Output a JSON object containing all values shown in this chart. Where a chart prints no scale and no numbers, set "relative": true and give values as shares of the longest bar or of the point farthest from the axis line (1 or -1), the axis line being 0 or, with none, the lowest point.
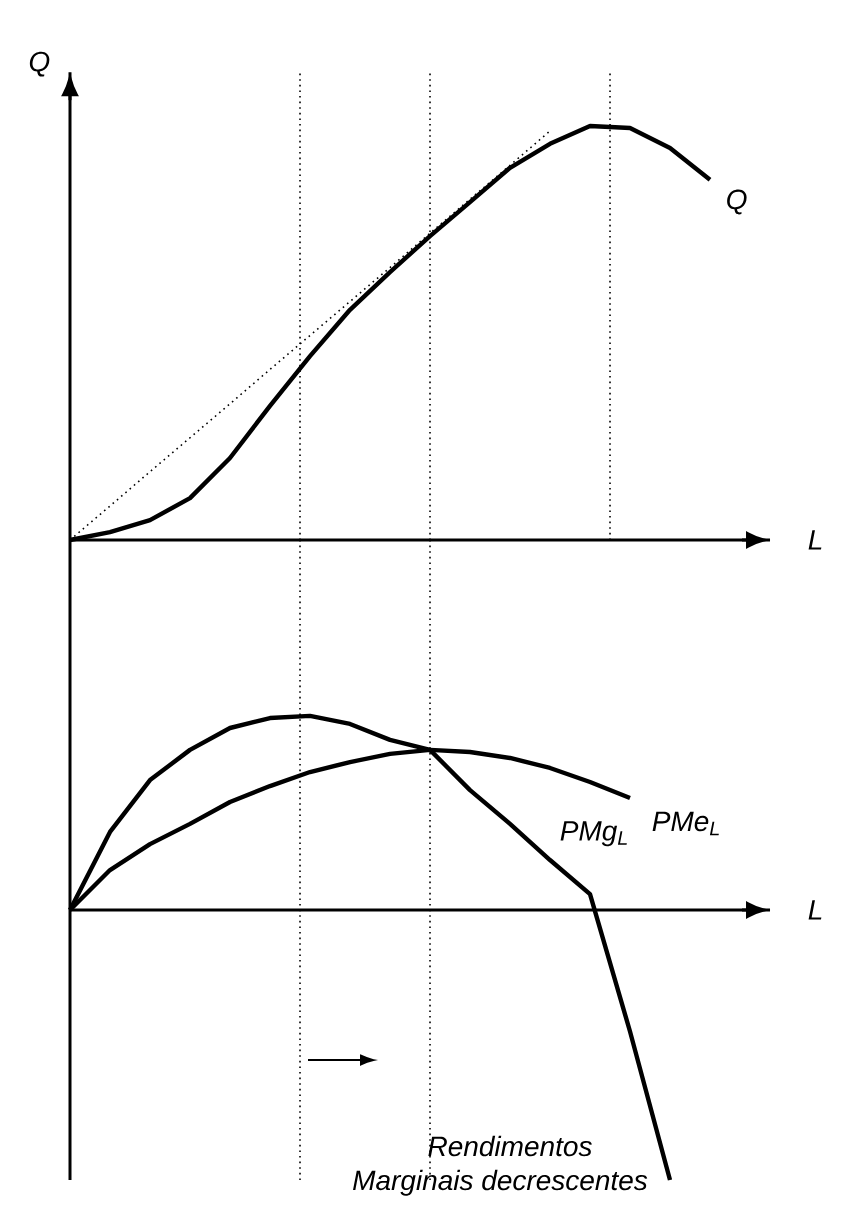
{
  "chart_data": [
    {
      "type": "line",
      "relative": true,
      "ylabel": "Q",
      "xlabel": "L",
      "marker": "none",
      "categories": [
        null,
        null,
        null,
        null,
        null,
        null,
        null,
        null,
        null,
        null,
        null,
        null,
        null,
        null,
        null,
        null,
        null,
        null
      ],
      "series": [
        {
          "name": "Q",
          "color": "#000000",
          "values": [
            0,
            0.019,
            0.048,
            0.101,
            0.198,
            0.324,
            0.444,
            0.556,
            0.647,
            0.734,
            0.816,
            0.899,
            0.957,
            1,
            0.995,
            0.947,
            0.87,
            null
          ]
        },
        {
          "color": "#000000",
          "line_style": "dotted",
          "values": [
            0,
            0.082,
            0.165,
            0.247,
            0.329,
            0.412,
            0.494,
            0.576,
            0.658,
            0.741,
            0.823,
            0.905,
            0.988,
            null,
            null,
            null,
            null,
            null
          ]
        }
      ],
      "line_style": "solid"
    },
    {
      "type": "line",
      "relative": true,
      "xlabel": "L",
      "marker": "none",
      "line_style": "solid",
      "categories": [
        null,
        null,
        null,
        null,
        null,
        null,
        null,
        null,
        null,
        null,
        null,
        null,
        null,
        null,
        null,
        null,
        null,
        null
      ],
      "series": [
        {
          "name": "PMg$_{L}$",
          "color": "#000000",
          "values": [
            0,
            0.289,
            0.481,
            0.593,
            0.674,
            0.711,
            0.719,
            0.689,
            0.63,
            0.593,
            0.444,
            0.319,
            0.185,
            0.059,
            -0.45,
            -1,
            null,
            null
          ]
        },
        {
          "name": "PMe$_{L}$",
          "color": "#000000",
          "values": [
            0,
            0.148,
            0.244,
            0.319,
            0.4,
            0.459,
            0.511,
            0.548,
            0.578,
            0.593,
            0.585,
            0.563,
            0.526,
            0.474,
            0.415,
            null,
            null,
            null
          ]
        }
      ],
      "annotations": [
        "Rendimentos",
        "Marginais decrescentes"
      ]
    }
  ]
}
